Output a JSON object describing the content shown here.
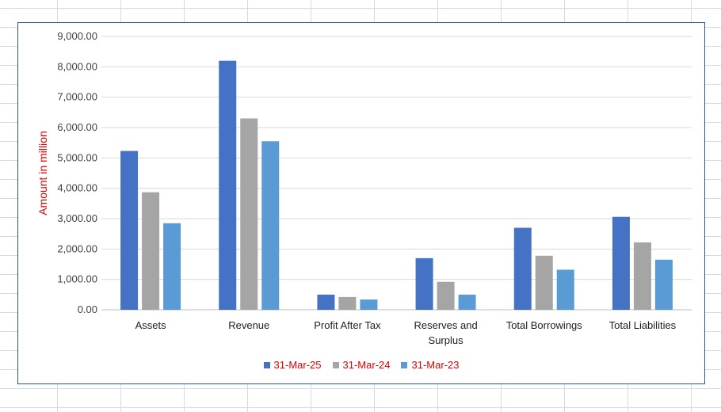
{
  "chart_data": {
    "type": "bar",
    "ylabel": "Amount in million",
    "xlabel": "",
    "title": "",
    "ylim": [
      0,
      9000
    ],
    "yticks": [
      "0.00",
      "1,000.00",
      "2,000.00",
      "3,000.00",
      "4,000.00",
      "5,000.00",
      "6,000.00",
      "7,000.00",
      "8,000.00",
      "9,000.00"
    ],
    "categories": [
      "Assets",
      "Revenue",
      "Profit After Tax",
      "Reserves and Surplus",
      "Total Borrowings",
      "Total Liabilities"
    ],
    "series": [
      {
        "name": "31-Mar-25",
        "color": "#4472c4",
        "values": [
          5230,
          8200,
          500,
          1700,
          2700,
          3060
        ]
      },
      {
        "name": "31-Mar-24",
        "color": "#a5a5a5",
        "values": [
          3870,
          6300,
          420,
          920,
          1780,
          2220
        ]
      },
      {
        "name": "31-Mar-23",
        "color": "#5b9bd5",
        "values": [
          2850,
          5550,
          340,
          500,
          1320,
          1650
        ]
      }
    ],
    "grid": true,
    "legend_position": "bottom"
  }
}
